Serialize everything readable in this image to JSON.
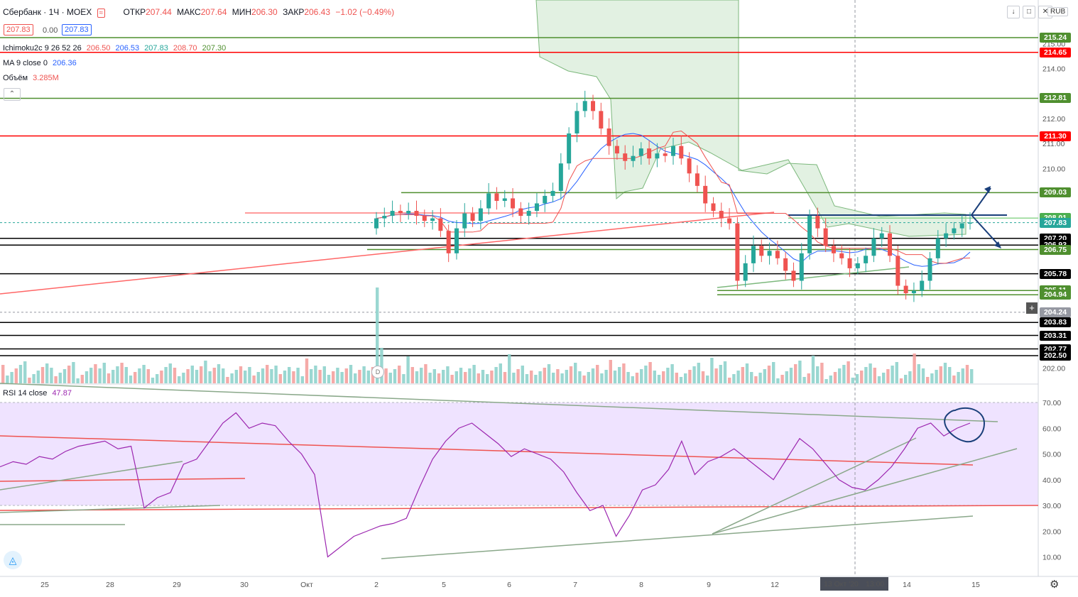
{
  "header": {
    "symbol": "Сбербанк · 1Ч · MOEX",
    "open_label": "ОТКР",
    "open": "207.44",
    "high_label": "МАКС",
    "high": "207.64",
    "low_label": "МИН",
    "low": "206.30",
    "close_label": "ЗАКР",
    "close": "206.43",
    "change": "−1.02 (−0.49%)",
    "bid": "207.83",
    "spread": "0.00",
    "ask": "207.83",
    "currency": "RUB"
  },
  "indicators": {
    "ichimoku": {
      "label": "Ichimoku2c 9 26 52 26",
      "v1": "206.50",
      "v2": "206.53",
      "v3": "207.83",
      "v4": "208.70",
      "v5": "207.30"
    },
    "ma": {
      "label": "MA 9 close 0",
      "value": "206.36"
    },
    "volume": {
      "label": "Объём",
      "value": "3.285M"
    },
    "rsi": {
      "label": "RSI 14 close",
      "value": "47.87"
    }
  },
  "colors": {
    "up": "#26a69a",
    "down": "#ef5350",
    "red_level": "#ff0000",
    "green_level": "#4f8f2f",
    "black_level": "#000000",
    "rsi": "#9c27b0",
    "rsi_band": "#ede1ff",
    "ma": "#2962ff",
    "cloud": "#a5d6a7"
  },
  "chart_data": [
    {
      "type": "candlestick",
      "title": "Сбербанк · 1Ч · MOEX",
      "x_ticks": [
        "25",
        "28",
        "29",
        "30",
        "Окт",
        "2",
        "5",
        "6",
        "7",
        "8",
        "9",
        "12",
        "13 Окт '20",
        "13:00",
        "14",
        "15"
      ],
      "y_ticks": [
        "215.00",
        "214.00",
        "212.00",
        "211.00",
        "210.00",
        "202.00"
      ],
      "ylim": [
        201.8,
        216.5
      ],
      "price_levels": [
        {
          "value": 215.24,
          "label": "215.24",
          "color": "green"
        },
        {
          "value": 214.65,
          "label": "214.65",
          "color": "red"
        },
        {
          "value": 212.81,
          "label": "212.81",
          "color": "green"
        },
        {
          "value": 211.3,
          "label": "211.30",
          "color": "red"
        },
        {
          "value": 209.03,
          "label": "209.03",
          "color": "green"
        },
        {
          "value": 208.01,
          "label": "208.01",
          "color": "lightgreen"
        },
        {
          "value": 207.83,
          "label": "207.83",
          "color": "teal"
        },
        {
          "value": 207.2,
          "label": "207.20",
          "color": "black"
        },
        {
          "value": 206.93,
          "label": "206.93",
          "color": "black"
        },
        {
          "value": 206.75,
          "label": "206.75",
          "color": "green"
        },
        {
          "value": 205.78,
          "label": "205.78",
          "color": "black"
        },
        {
          "value": 205.11,
          "label": "205.11",
          "color": "green"
        },
        {
          "value": 204.94,
          "label": "204.94",
          "color": "green"
        },
        {
          "value": 204.24,
          "label": "204.24",
          "color": "grey"
        },
        {
          "value": 203.83,
          "label": "203.83",
          "color": "black"
        },
        {
          "value": 203.31,
          "label": "203.31",
          "color": "black"
        },
        {
          "value": 202.77,
          "label": "202.77",
          "color": "black"
        },
        {
          "value": 202.5,
          "label": "202.50",
          "color": "black"
        }
      ],
      "close_series": [
        208.0,
        208.1,
        208.3,
        208.2,
        208.3,
        208.1,
        207.9,
        208.0,
        207.5,
        206.6,
        207.6,
        208.2,
        207.9,
        208.4,
        209.0,
        208.7,
        208.8,
        208.4,
        208.1,
        208.3,
        208.6,
        208.9,
        209.1,
        210.2,
        211.4,
        212.3,
        212.7,
        212.3,
        211.6,
        210.9,
        210.6,
        210.3,
        210.5,
        210.8,
        210.4,
        210.6,
        210.5,
        210.9,
        210.4,
        209.8,
        209.3,
        208.6,
        208.3,
        208.0,
        207.8,
        205.5,
        206.2,
        206.9,
        206.5,
        206.7,
        206.4,
        205.9,
        205.5,
        206.6,
        208.1,
        207.6,
        206.9,
        206.6,
        206.4,
        206.0,
        206.2,
        206.5,
        207.2,
        207.4,
        206.5,
        205.3,
        205.0,
        205.1,
        205.5,
        206.4,
        207.2,
        207.4,
        207.6,
        207.8,
        207.83
      ],
      "volume_label": "Объём 3.285M"
    },
    {
      "type": "line",
      "title": "RSI 14 close",
      "y_ticks": [
        "70.00",
        "60.00",
        "50.00",
        "40.00",
        "30.00",
        "20.00",
        "10.00"
      ],
      "ylim": [
        5,
        75
      ],
      "band": [
        30,
        70
      ],
      "values": [
        45,
        47,
        46,
        49,
        48,
        51,
        53,
        54,
        55,
        52,
        53,
        29,
        33,
        35,
        46,
        48,
        55,
        62,
        66,
        60,
        62,
        61,
        55,
        50,
        42,
        10,
        14,
        18,
        20,
        22,
        23,
        25,
        37,
        48,
        55,
        60,
        62,
        58,
        54,
        49,
        52,
        50,
        48,
        43,
        35,
        28,
        30,
        18,
        26,
        36,
        38,
        44,
        55,
        42,
        47,
        49,
        52,
        48,
        44,
        40,
        48,
        56,
        52,
        46,
        40,
        37,
        36,
        40,
        45,
        52,
        60,
        62,
        57,
        60,
        62
      ],
      "current": "47.87"
    }
  ]
}
